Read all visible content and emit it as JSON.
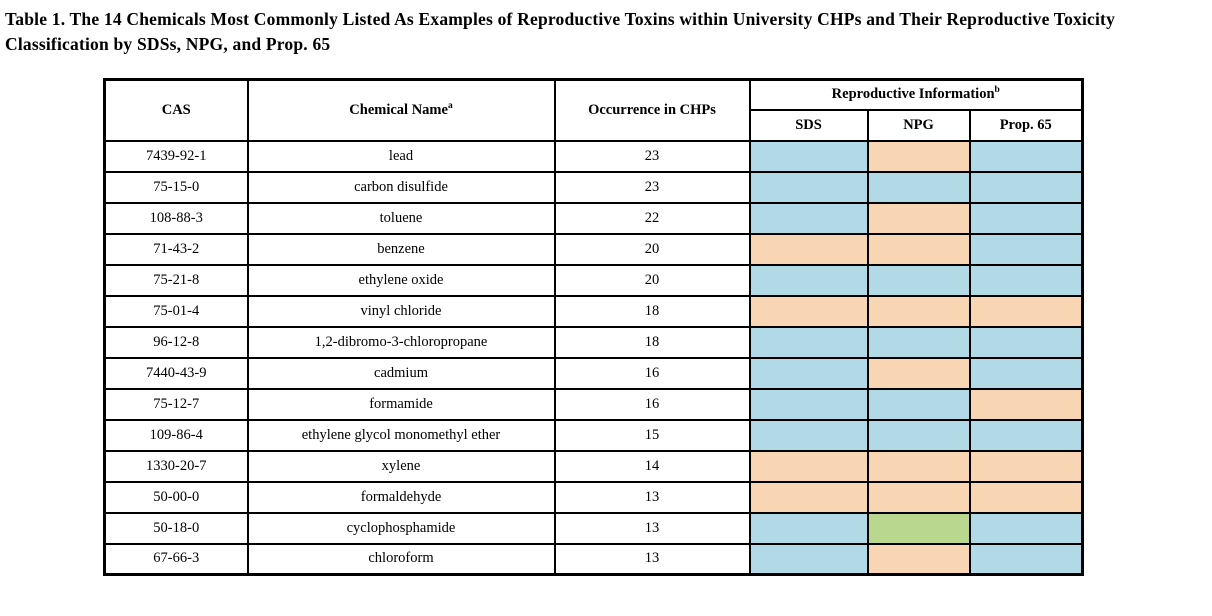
{
  "title": "Table 1. The 14 Chemicals Most Commonly Listed As Examples of Reproductive Toxins within University CHPs and Their Reproductive Toxicity Classification by SDSs, NPG, and Prop. 65",
  "table": {
    "headers": {
      "cas": "CAS",
      "chemical_name": "Chemical Name",
      "chemical_name_note": "a",
      "occurrence": "Occurrence in CHPs",
      "reproductive_information": "Reproductive Information",
      "reproductive_information_note": "b",
      "sds": "SDS",
      "npg": "NPG",
      "prop65": "Prop. 65"
    },
    "classification_colors": {
      "blue": "#B2DAE6",
      "orange": "#F9D6B3",
      "green": "#BAD78F"
    },
    "rows": [
      {
        "cas": "7439-92-1",
        "name": "lead",
        "occurrence": "23",
        "sds": "blue",
        "npg": "orange",
        "prop65": "blue"
      },
      {
        "cas": "75-15-0",
        "name": "carbon disulfide",
        "occurrence": "23",
        "sds": "blue",
        "npg": "blue",
        "prop65": "blue"
      },
      {
        "cas": "108-88-3",
        "name": "toluene",
        "occurrence": "22",
        "sds": "blue",
        "npg": "orange",
        "prop65": "blue"
      },
      {
        "cas": "71-43-2",
        "name": "benzene",
        "occurrence": "20",
        "sds": "orange",
        "npg": "orange",
        "prop65": "blue"
      },
      {
        "cas": "75-21-8",
        "name": "ethylene oxide",
        "occurrence": "20",
        "sds": "blue",
        "npg": "blue",
        "prop65": "blue"
      },
      {
        "cas": "75-01-4",
        "name": "vinyl chloride",
        "occurrence": "18",
        "sds": "orange",
        "npg": "orange",
        "prop65": "orange"
      },
      {
        "cas": "96-12-8",
        "name": "1,2-dibromo-3-chloropropane",
        "occurrence": "18",
        "sds": "blue",
        "npg": "blue",
        "prop65": "blue"
      },
      {
        "cas": "7440-43-9",
        "name": "cadmium",
        "occurrence": "16",
        "sds": "blue",
        "npg": "orange",
        "prop65": "blue"
      },
      {
        "cas": "75-12-7",
        "name": "formamide",
        "occurrence": "16",
        "sds": "blue",
        "npg": "blue",
        "prop65": "orange"
      },
      {
        "cas": "109-86-4",
        "name": "ethylene glycol monomethyl ether",
        "occurrence": "15",
        "sds": "blue",
        "npg": "blue",
        "prop65": "blue"
      },
      {
        "cas": "1330-20-7",
        "name": "xylene",
        "occurrence": "14",
        "sds": "orange",
        "npg": "orange",
        "prop65": "orange"
      },
      {
        "cas": "50-00-0",
        "name": "formaldehyde",
        "occurrence": "13",
        "sds": "orange",
        "npg": "orange",
        "prop65": "orange"
      },
      {
        "cas": "50-18-0",
        "name": "cyclophosphamide",
        "occurrence": "13",
        "sds": "blue",
        "npg": "green",
        "prop65": "blue"
      },
      {
        "cas": "67-66-3",
        "name": "chloroform",
        "occurrence": "13",
        "sds": "blue",
        "npg": "orange",
        "prop65": "blue"
      }
    ]
  }
}
